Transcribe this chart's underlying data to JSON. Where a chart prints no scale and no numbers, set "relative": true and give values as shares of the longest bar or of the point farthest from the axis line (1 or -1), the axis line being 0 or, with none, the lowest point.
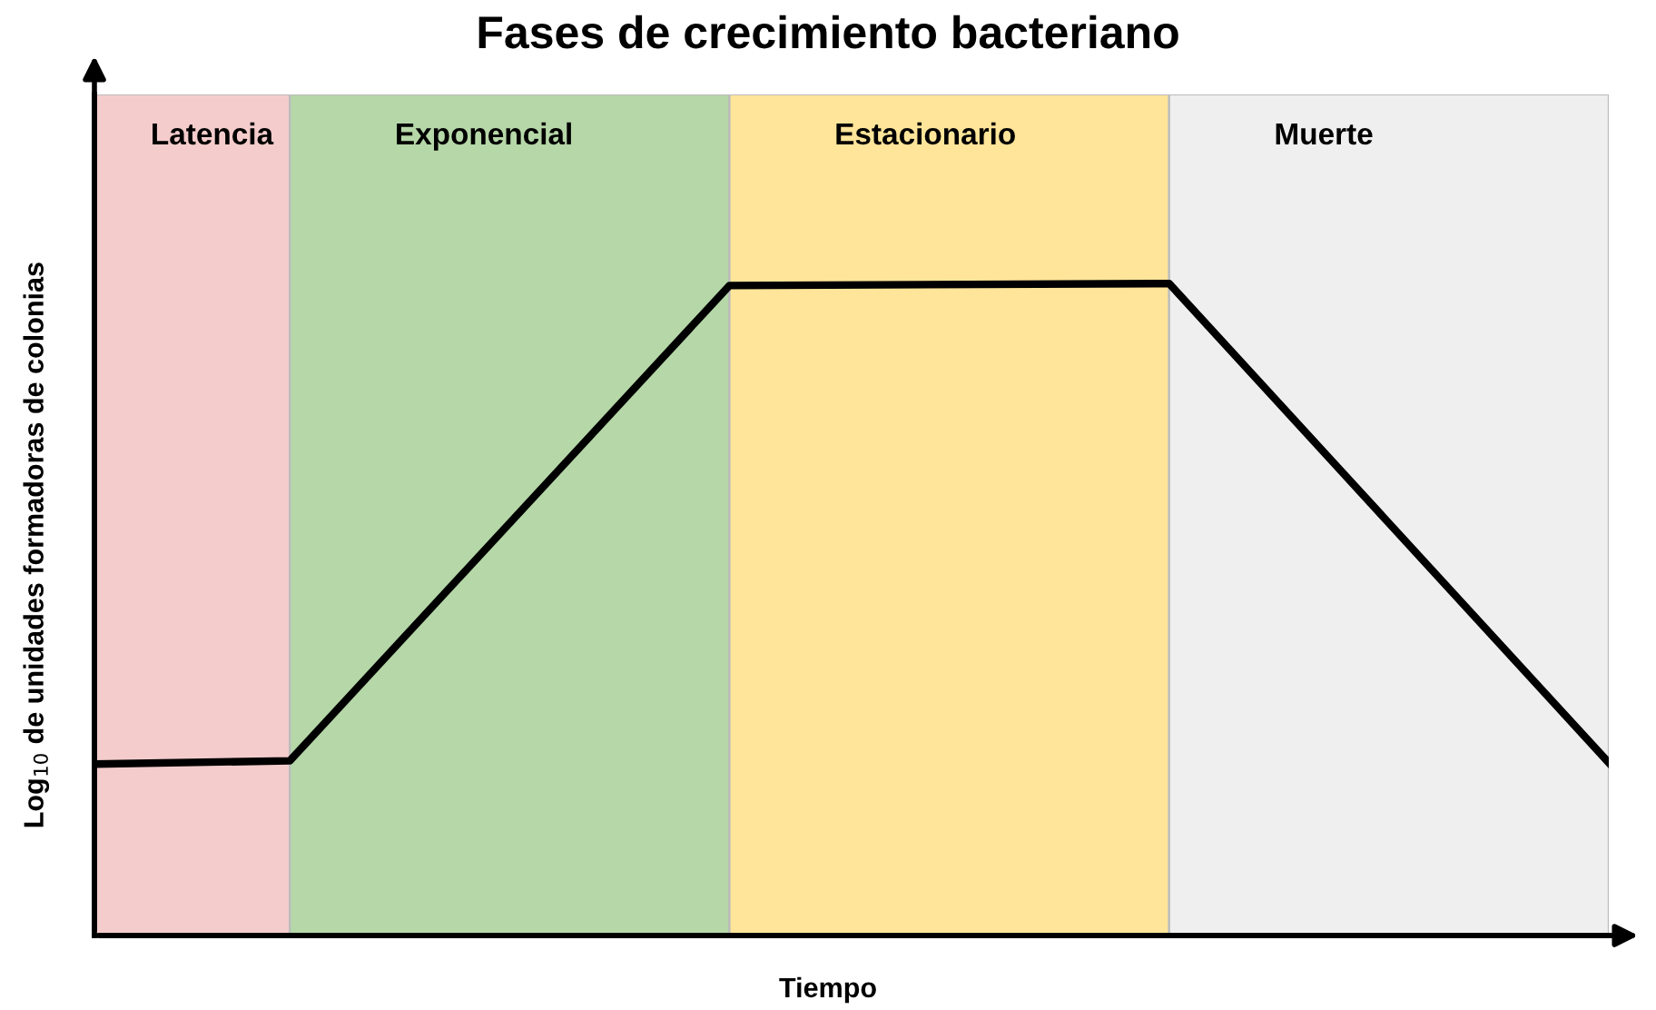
{
  "chart_data": {
    "type": "line",
    "title": "Fases de crecimiento bacteriano",
    "xlabel": "Tiempo",
    "ylabel": "Log$_{10}$ de unidades formadoras de colonias",
    "relative": true,
    "categories": [
      null,
      null,
      null,
      null,
      null,
      null,
      null,
      null,
      null,
      null,
      null,
      null,
      null,
      null,
      null,
      null,
      null,
      null,
      null,
      null,
      null,
      null,
      null,
      null,
      null,
      null,
      null,
      null,
      null,
      null,
      null,
      null
    ],
    "series": [
      {
        "color": "#000000",
        "values": [
          0.263,
          null,
          null,
          null,
          0.268,
          null,
          null,
          null,
          null,
          null,
          null,
          null,
          null,
          0.997,
          null,
          null,
          null,
          null,
          null,
          null,
          null,
          null,
          1,
          null,
          null,
          null,
          null,
          null,
          null,
          null,
          null,
          0.265
        ]
      }
    ],
    "annotations": [
      "Latencia",
      "Exponencial",
      "Estacionario",
      "Muerte"
    ],
    "marker": "none",
    "line_style": "solid"
  }
}
